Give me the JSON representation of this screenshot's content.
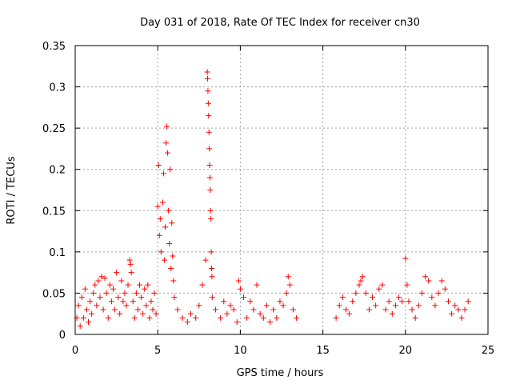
{
  "chart_data": {
    "type": "scatter",
    "title": "Day 031 of 2018, Rate Of TEC Index for receiver cn30",
    "xlabel": "GPS time / hours",
    "ylabel": "ROTI / TECUs",
    "xlim": [
      0,
      25
    ],
    "ylim": [
      0,
      0.35
    ],
    "x_ticks": [
      0,
      5,
      10,
      15,
      20,
      25
    ],
    "x_tick_labels": [
      "0",
      "5",
      "10",
      "15",
      "20",
      "25"
    ],
    "y_ticks": [
      0,
      0.05,
      0.1,
      0.15,
      0.2,
      0.25,
      0.3,
      0.35
    ],
    "y_tick_labels": [
      "0",
      "0.05",
      "0.1",
      "0.15",
      "0.2",
      "0.25",
      "0.3",
      "0.35"
    ],
    "grid": true,
    "marker": "+",
    "color": "#ff0000",
    "series": [
      {
        "name": "ROTI",
        "points": [
          [
            0.1,
            0.02
          ],
          [
            0.2,
            0.035
          ],
          [
            0.3,
            0.01
          ],
          [
            0.4,
            0.045
          ],
          [
            0.5,
            0.02
          ],
          [
            0.6,
            0.055
          ],
          [
            0.7,
            0.03
          ],
          [
            0.8,
            0.015
          ],
          [
            0.9,
            0.04
          ],
          [
            1.0,
            0.025
          ],
          [
            1.1,
            0.05
          ],
          [
            1.2,
            0.06
          ],
          [
            1.3,
            0.035
          ],
          [
            1.4,
            0.065
          ],
          [
            1.5,
            0.045
          ],
          [
            1.6,
            0.07
          ],
          [
            1.7,
            0.03
          ],
          [
            1.8,
            0.068
          ],
          [
            1.9,
            0.05
          ],
          [
            2.0,
            0.02
          ],
          [
            2.1,
            0.06
          ],
          [
            2.2,
            0.04
          ],
          [
            2.3,
            0.055
          ],
          [
            2.4,
            0.03
          ],
          [
            2.5,
            0.075
          ],
          [
            2.6,
            0.045
          ],
          [
            2.7,
            0.025
          ],
          [
            2.8,
            0.065
          ],
          [
            2.9,
            0.04
          ],
          [
            3.0,
            0.05
          ],
          [
            3.1,
            0.035
          ],
          [
            3.2,
            0.06
          ],
          [
            3.3,
            0.09
          ],
          [
            3.35,
            0.085
          ],
          [
            3.4,
            0.075
          ],
          [
            3.5,
            0.04
          ],
          [
            3.6,
            0.02
          ],
          [
            3.7,
            0.05
          ],
          [
            3.8,
            0.03
          ],
          [
            3.9,
            0.06
          ],
          [
            4.0,
            0.045
          ],
          [
            4.1,
            0.025
          ],
          [
            4.2,
            0.055
          ],
          [
            4.3,
            0.035
          ],
          [
            4.4,
            0.06
          ],
          [
            4.5,
            0.02
          ],
          [
            4.6,
            0.04
          ],
          [
            4.7,
            0.03
          ],
          [
            4.8,
            0.05
          ],
          [
            4.9,
            0.025
          ],
          [
            5.0,
            0.155
          ],
          [
            5.05,
            0.205
          ],
          [
            5.1,
            0.12
          ],
          [
            5.15,
            0.14
          ],
          [
            5.2,
            0.1
          ],
          [
            5.3,
            0.16
          ],
          [
            5.35,
            0.195
          ],
          [
            5.4,
            0.09
          ],
          [
            5.45,
            0.13
          ],
          [
            5.5,
            0.232
          ],
          [
            5.55,
            0.252
          ],
          [
            5.6,
            0.22
          ],
          [
            5.65,
            0.15
          ],
          [
            5.7,
            0.11
          ],
          [
            5.75,
            0.2
          ],
          [
            5.8,
            0.08
          ],
          [
            5.85,
            0.135
          ],
          [
            5.9,
            0.095
          ],
          [
            5.95,
            0.065
          ],
          [
            6.0,
            0.045
          ],
          [
            6.2,
            0.03
          ],
          [
            6.5,
            0.02
          ],
          [
            6.8,
            0.015
          ],
          [
            7.0,
            0.025
          ],
          [
            7.3,
            0.02
          ],
          [
            7.5,
            0.035
          ],
          [
            7.7,
            0.06
          ],
          [
            7.9,
            0.09
          ],
          [
            8.0,
            0.318
          ],
          [
            8.02,
            0.31
          ],
          [
            8.04,
            0.295
          ],
          [
            8.06,
            0.28
          ],
          [
            8.08,
            0.265
          ],
          [
            8.1,
            0.245
          ],
          [
            8.12,
            0.225
          ],
          [
            8.14,
            0.205
          ],
          [
            8.16,
            0.19
          ],
          [
            8.18,
            0.175
          ],
          [
            8.2,
            0.15
          ],
          [
            8.22,
            0.14
          ],
          [
            8.24,
            0.1
          ],
          [
            8.26,
            0.08
          ],
          [
            8.28,
            0.07
          ],
          [
            8.3,
            0.045
          ],
          [
            8.5,
            0.03
          ],
          [
            8.8,
            0.02
          ],
          [
            9.0,
            0.04
          ],
          [
            9.2,
            0.025
          ],
          [
            9.4,
            0.035
          ],
          [
            9.6,
            0.03
          ],
          [
            9.8,
            0.015
          ],
          [
            9.9,
            0.065
          ],
          [
            10.0,
            0.055
          ],
          [
            10.2,
            0.045
          ],
          [
            10.4,
            0.02
          ],
          [
            10.6,
            0.04
          ],
          [
            10.8,
            0.03
          ],
          [
            11.0,
            0.06
          ],
          [
            11.2,
            0.025
          ],
          [
            11.4,
            0.02
          ],
          [
            11.6,
            0.035
          ],
          [
            11.8,
            0.015
          ],
          [
            12.0,
            0.03
          ],
          [
            12.2,
            0.02
          ],
          [
            12.4,
            0.04
          ],
          [
            12.6,
            0.035
          ],
          [
            12.8,
            0.05
          ],
          [
            12.9,
            0.07
          ],
          [
            13.0,
            0.06
          ],
          [
            13.2,
            0.03
          ],
          [
            13.4,
            0.02
          ],
          [
            15.8,
            0.02
          ],
          [
            16.0,
            0.035
          ],
          [
            16.2,
            0.045
          ],
          [
            16.4,
            0.03
          ],
          [
            16.6,
            0.025
          ],
          [
            16.8,
            0.04
          ],
          [
            17.0,
            0.05
          ],
          [
            17.2,
            0.06
          ],
          [
            17.3,
            0.065
          ],
          [
            17.4,
            0.07
          ],
          [
            17.6,
            0.05
          ],
          [
            17.8,
            0.03
          ],
          [
            18.0,
            0.045
          ],
          [
            18.2,
            0.035
          ],
          [
            18.4,
            0.055
          ],
          [
            18.6,
            0.06
          ],
          [
            18.8,
            0.03
          ],
          [
            19.0,
            0.04
          ],
          [
            19.2,
            0.025
          ],
          [
            19.4,
            0.035
          ],
          [
            19.6,
            0.045
          ],
          [
            19.8,
            0.04
          ],
          [
            20.0,
            0.092
          ],
          [
            20.1,
            0.06
          ],
          [
            20.2,
            0.04
          ],
          [
            20.4,
            0.03
          ],
          [
            20.6,
            0.02
          ],
          [
            20.8,
            0.035
          ],
          [
            21.0,
            0.05
          ],
          [
            21.2,
            0.07
          ],
          [
            21.4,
            0.065
          ],
          [
            21.6,
            0.045
          ],
          [
            21.8,
            0.035
          ],
          [
            22.0,
            0.05
          ],
          [
            22.2,
            0.065
          ],
          [
            22.4,
            0.055
          ],
          [
            22.6,
            0.04
          ],
          [
            22.8,
            0.025
          ],
          [
            23.0,
            0.035
          ],
          [
            23.2,
            0.03
          ],
          [
            23.4,
            0.02
          ],
          [
            23.6,
            0.03
          ],
          [
            23.8,
            0.04
          ]
        ]
      }
    ]
  }
}
